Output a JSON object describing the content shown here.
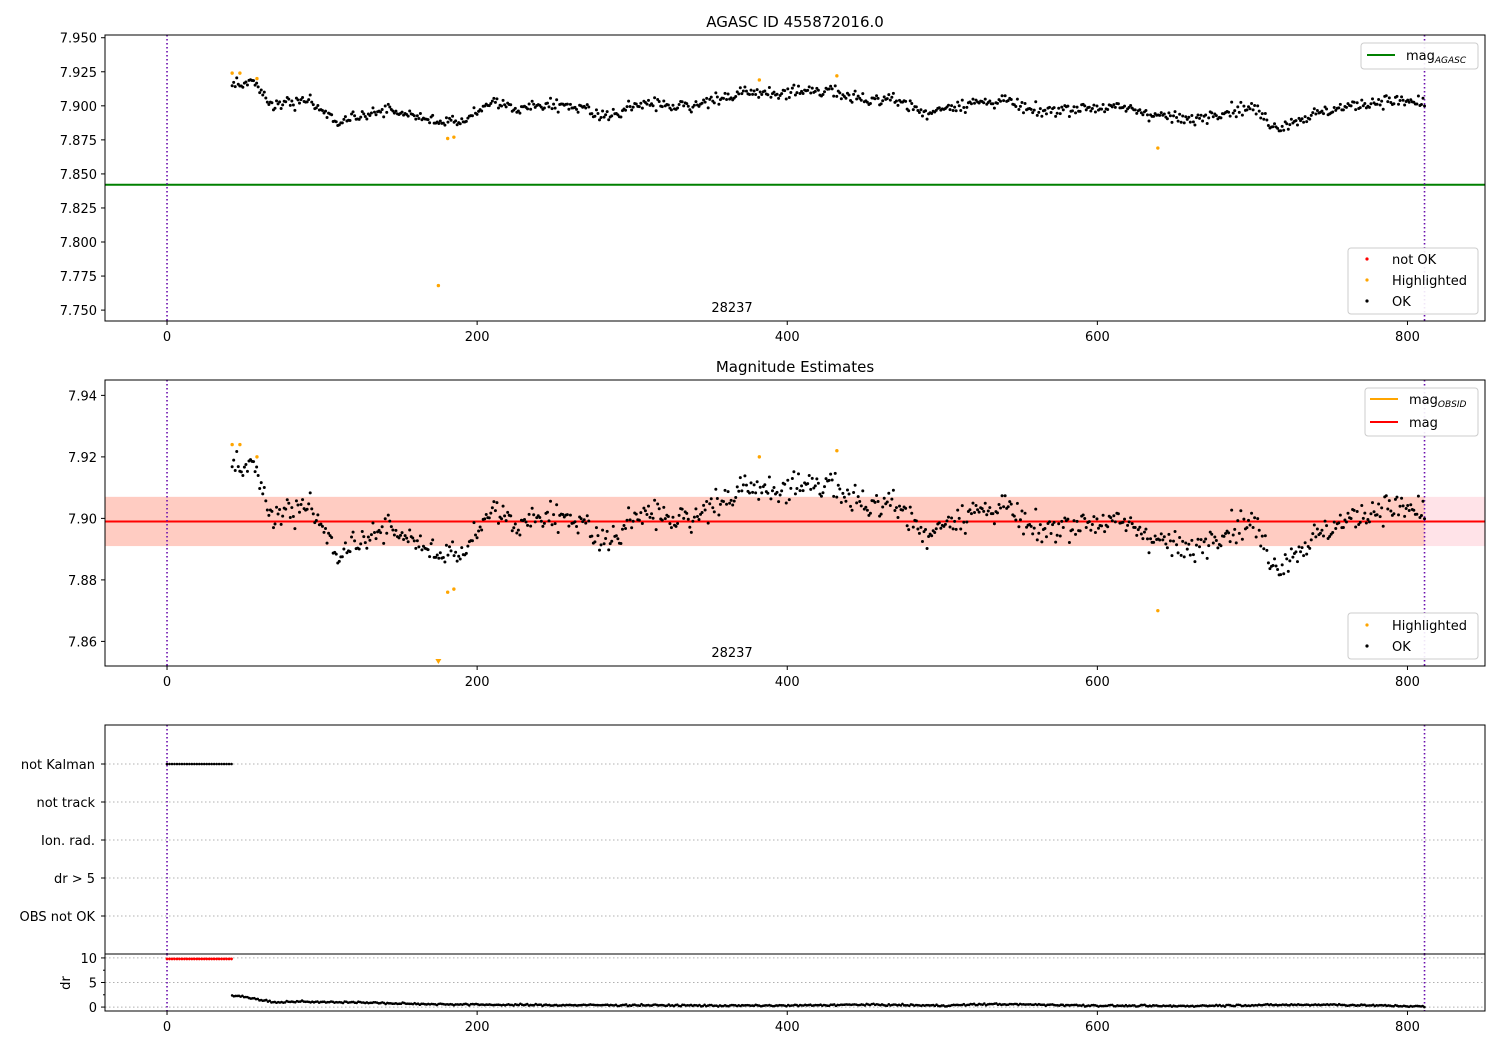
{
  "chart_data": [
    {
      "type": "scatter",
      "title": "AGASC ID 455872016.0",
      "xlim": [
        -40,
        850
      ],
      "ylim": [
        7.742,
        7.952
      ],
      "x_ticks": [
        0,
        200,
        400,
        600,
        800
      ],
      "y_ticks": [
        7.75,
        7.775,
        7.8,
        7.825,
        7.85,
        7.875,
        7.9,
        7.925,
        7.95
      ],
      "y_tick_labels": [
        "7.750",
        "7.775",
        "7.800",
        "7.825",
        "7.850",
        "7.875",
        "7.900",
        "7.925",
        "7.950"
      ],
      "annotation": "28237",
      "vlines": [
        0,
        811
      ],
      "hlines": [
        {
          "name": "mag_AGASC",
          "y": 7.842,
          "x_range": [
            -40,
            850
          ],
          "color": "#008000"
        }
      ],
      "legend_lines": [
        {
          "label_main": "mag",
          "label_sub": "AGASC",
          "color": "#008000"
        }
      ],
      "legend_points": [
        {
          "label": "not OK",
          "color": "#ff0000"
        },
        {
          "label": "Highlighted",
          "color": "#ffa500"
        },
        {
          "label": "OK",
          "color": "#000000"
        }
      ],
      "highlighted": [
        [
          42,
          7.924
        ],
        [
          47,
          7.924
        ],
        [
          58,
          7.92
        ],
        [
          181,
          7.876
        ],
        [
          185,
          7.877
        ],
        [
          382,
          7.919
        ],
        [
          432,
          7.922
        ],
        [
          639,
          7.869
        ],
        [
          175,
          7.768
        ]
      ],
      "ok_trend": [
        [
          42,
          7.914
        ],
        [
          50,
          7.918
        ],
        [
          58,
          7.915
        ],
        [
          66,
          7.899
        ],
        [
          78,
          7.902
        ],
        [
          90,
          7.905
        ],
        [
          98,
          7.898
        ],
        [
          110,
          7.887
        ],
        [
          125,
          7.893
        ],
        [
          140,
          7.896
        ],
        [
          160,
          7.893
        ],
        [
          175,
          7.888
        ],
        [
          190,
          7.889
        ],
        [
          200,
          7.895
        ],
        [
          210,
          7.905
        ],
        [
          225,
          7.897
        ],
        [
          250,
          7.902
        ],
        [
          270,
          7.898
        ],
        [
          285,
          7.891
        ],
        [
          300,
          7.902
        ],
        [
          330,
          7.899
        ],
        [
          350,
          7.903
        ],
        [
          375,
          7.91
        ],
        [
          400,
          7.909
        ],
        [
          430,
          7.912
        ],
        [
          450,
          7.904
        ],
        [
          470,
          7.906
        ],
        [
          490,
          7.893
        ],
        [
          500,
          7.899
        ],
        [
          520,
          7.902
        ],
        [
          540,
          7.904
        ],
        [
          560,
          7.895
        ],
        [
          580,
          7.898
        ],
        [
          600,
          7.899
        ],
        [
          620,
          7.898
        ],
        [
          640,
          7.893
        ],
        [
          660,
          7.889
        ],
        [
          680,
          7.896
        ],
        [
          700,
          7.899
        ],
        [
          715,
          7.884
        ],
        [
          730,
          7.89
        ],
        [
          750,
          7.897
        ],
        [
          770,
          7.901
        ],
        [
          785,
          7.904
        ],
        [
          811,
          7.902
        ]
      ],
      "ok_count": 780
    },
    {
      "type": "scatter",
      "title": "Magnitude Estimates",
      "xlim": [
        -40,
        850
      ],
      "ylim": [
        7.852,
        7.945
      ],
      "x_ticks": [
        0,
        200,
        400,
        600,
        800
      ],
      "y_ticks": [
        7.86,
        7.88,
        7.9,
        7.92,
        7.94
      ],
      "y_tick_labels": [
        "7.86",
        "7.88",
        "7.90",
        "7.92",
        "7.94"
      ],
      "annotation": "28237",
      "vlines": [
        0,
        811
      ],
      "band": {
        "y_low": 7.891,
        "y_high": 7.907,
        "x_range": [
          -40,
          850
        ],
        "outer_color": "#ffc0cb",
        "inner_color": "#ffa07a",
        "inner_x_range": [
          -40,
          811
        ]
      },
      "hlines": [
        {
          "name": "mag",
          "y": 7.899,
          "x_range": [
            -40,
            850
          ],
          "color": "#ff0000"
        }
      ],
      "legend_lines": [
        {
          "label_main": "mag",
          "label_sub": "OBSID",
          "color": "#ffa500"
        },
        {
          "label_main": "mag",
          "label_sub": "",
          "color": "#ff0000"
        }
      ],
      "legend_points": [
        {
          "label": "Highlighted",
          "color": "#ffa500"
        },
        {
          "label": "OK",
          "color": "#000000"
        }
      ],
      "highlighted": [
        [
          42,
          7.924
        ],
        [
          47,
          7.924
        ],
        [
          58,
          7.92
        ],
        [
          181,
          7.876
        ],
        [
          185,
          7.877
        ],
        [
          382,
          7.92
        ],
        [
          432,
          7.922
        ],
        [
          639,
          7.87
        ]
      ],
      "offscale_marker": {
        "x": 175,
        "label": "below range"
      },
      "ok_trend": [
        [
          42,
          7.916
        ],
        [
          50,
          7.918
        ],
        [
          58,
          7.915
        ],
        [
          66,
          7.899
        ],
        [
          78,
          7.902
        ],
        [
          90,
          7.905
        ],
        [
          98,
          7.899
        ],
        [
          110,
          7.887
        ],
        [
          125,
          7.893
        ],
        [
          140,
          7.896
        ],
        [
          160,
          7.893
        ],
        [
          175,
          7.888
        ],
        [
          190,
          7.889
        ],
        [
          200,
          7.895
        ],
        [
          210,
          7.905
        ],
        [
          225,
          7.897
        ],
        [
          250,
          7.902
        ],
        [
          270,
          7.898
        ],
        [
          285,
          7.891
        ],
        [
          300,
          7.902
        ],
        [
          330,
          7.899
        ],
        [
          350,
          7.903
        ],
        [
          375,
          7.91
        ],
        [
          400,
          7.909
        ],
        [
          430,
          7.912
        ],
        [
          450,
          7.904
        ],
        [
          470,
          7.906
        ],
        [
          490,
          7.893
        ],
        [
          500,
          7.899
        ],
        [
          520,
          7.902
        ],
        [
          540,
          7.904
        ],
        [
          560,
          7.895
        ],
        [
          580,
          7.898
        ],
        [
          600,
          7.899
        ],
        [
          620,
          7.898
        ],
        [
          640,
          7.893
        ],
        [
          660,
          7.889
        ],
        [
          680,
          7.896
        ],
        [
          700,
          7.899
        ],
        [
          715,
          7.884
        ],
        [
          730,
          7.89
        ],
        [
          750,
          7.897
        ],
        [
          770,
          7.901
        ],
        [
          785,
          7.904
        ],
        [
          811,
          7.902
        ]
      ],
      "ok_count": 780
    },
    {
      "type": "scatter",
      "title": "",
      "xlim": [
        -40,
        850
      ],
      "categories": [
        "not Kalman",
        "not track",
        "Ion. rad.",
        "dr > 5",
        "OBS not OK"
      ],
      "flag_ranges": [
        {
          "category": "not Kalman",
          "x_range": [
            0,
            42
          ],
          "color": "#000000"
        }
      ],
      "vlines": [
        0,
        811
      ],
      "grid": true
    },
    {
      "type": "scatter",
      "ylabel": "dr",
      "xlim": [
        -40,
        850
      ],
      "ylim": [
        -0.8,
        10.8
      ],
      "x_ticks": [
        0,
        200,
        400,
        600,
        800
      ],
      "y_ticks": [
        0,
        5,
        10
      ],
      "y_tick_labels": [
        "0",
        "5",
        "10"
      ],
      "vlines": [
        0,
        811
      ],
      "not_ok_range": {
        "x_range": [
          0,
          42
        ],
        "y": 9.8,
        "color": "#ff0000"
      },
      "ok_trend": [
        [
          42,
          2.4
        ],
        [
          55,
          1.8
        ],
        [
          70,
          0.9
        ],
        [
          85,
          1.2
        ],
        [
          100,
          1.0
        ],
        [
          120,
          1.0
        ],
        [
          150,
          0.7
        ],
        [
          200,
          0.5
        ],
        [
          250,
          0.4
        ],
        [
          300,
          0.4
        ],
        [
          350,
          0.3
        ],
        [
          400,
          0.3
        ],
        [
          450,
          0.5
        ],
        [
          500,
          0.3
        ],
        [
          530,
          0.6
        ],
        [
          560,
          0.5
        ],
        [
          600,
          0.3
        ],
        [
          650,
          0.2
        ],
        [
          700,
          0.4
        ],
        [
          750,
          0.5
        ],
        [
          800,
          0.2
        ],
        [
          811,
          0.1
        ]
      ],
      "grid": true
    }
  ]
}
